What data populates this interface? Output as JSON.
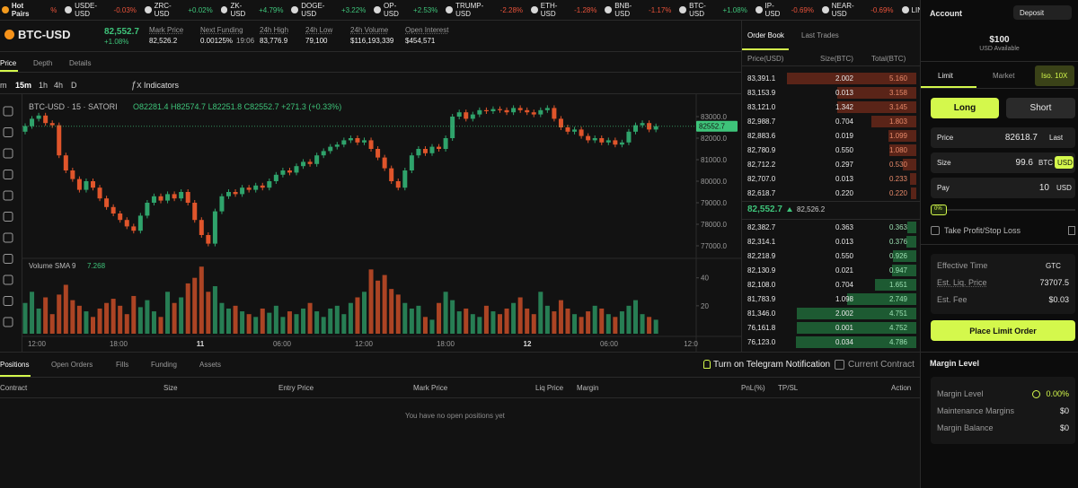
{
  "ticker": {
    "label": "Hot Pairs",
    "sort": "%",
    "items": [
      {
        "pair": "USDE-USD",
        "change": "-0.03%"
      },
      {
        "pair": "ZRC-USD",
        "change": "+0.02%"
      },
      {
        "pair": "ZK-USD",
        "change": "+4.79%"
      },
      {
        "pair": "DOGE-USD",
        "change": "+3.22%"
      },
      {
        "pair": "OP-USD",
        "change": "+2.53%"
      },
      {
        "pair": "TRUMP-USD",
        "change": "-2.28%"
      },
      {
        "pair": "ETH-USD",
        "change": "-1.28%"
      },
      {
        "pair": "BNB-USD",
        "change": "-1.17%"
      },
      {
        "pair": "BTC-USD",
        "change": "+1.08%"
      },
      {
        "pair": "IP-USD",
        "change": "-0.69%"
      },
      {
        "pair": "NEAR-USD",
        "change": "-0.69%"
      },
      {
        "pair": "LIN",
        "change": ""
      }
    ]
  },
  "market": {
    "symbol": "BTC-USD",
    "price": "82,552.7",
    "change": "+1.08%",
    "stats": [
      {
        "label": "Mark Price",
        "value": "82,526.2"
      },
      {
        "label": "Next Funding",
        "value": "0.00125%",
        "extra": "19:06"
      },
      {
        "label": "24h High",
        "value": "83,776.9"
      },
      {
        "label": "24h Low",
        "value": "79,100"
      },
      {
        "label": "24h Volume",
        "value": "$116,193,339"
      },
      {
        "label": "Open Interest",
        "value": "$454,571"
      }
    ]
  },
  "tabs": [
    "Price",
    "Depth",
    "Details"
  ],
  "toolbar": {
    "intervals": [
      "m",
      "15m",
      "1h",
      "4h",
      "D"
    ],
    "indicators": "Indicators"
  },
  "chart_data": {
    "type": "candlestick",
    "title": "BTC-USD · 15 · SATORI",
    "ohlc": "O82281.4 H82574.7 L82251.8 C82552.7 +271.3 (+0.33%)",
    "open": 82300,
    "close": [
      82560,
      82900,
      83050,
      82700,
      82600,
      81200,
      80500,
      80100,
      79600,
      80000,
      79700,
      79200,
      78800,
      78500,
      78200,
      77900,
      77700,
      78400,
      79000,
      79300,
      79100,
      79400,
      79200,
      79500,
      79000,
      78200,
      77500,
      77100,
      78600,
      79300,
      79500,
      79400,
      79700,
      79600,
      79800,
      79700,
      80000,
      80300,
      80500,
      80400,
      80700,
      80900,
      80800,
      81200,
      81400,
      81600,
      81700,
      81900,
      82000,
      81800,
      81900,
      81500,
      81100,
      80600,
      80000,
      79700,
      80500,
      81200,
      81500,
      81300,
      81600,
      81500,
      82000,
      83000,
      83200,
      82900,
      83100,
      83300,
      83250,
      83350,
      83300,
      83200,
      83400,
      83300,
      83200,
      83100,
      83300,
      83400,
      82900,
      82500,
      82300,
      82400,
      82100,
      81900,
      82000,
      81800,
      81900,
      81700,
      81800,
      82300,
      82600,
      82700,
      82400,
      82552.7
    ],
    "ylim": [
      76500,
      84000
    ],
    "yticks": [
      {
        "value": 83000,
        "label": "83000.0"
      },
      {
        "value": 82000,
        "label": "82000.0"
      },
      {
        "value": 81000,
        "label": "81000.0"
      },
      {
        "value": 80000,
        "label": "80000.0"
      },
      {
        "value": 79000,
        "label": "79000.0"
      },
      {
        "value": 78000,
        "label": "78000.0"
      },
      {
        "value": 77000,
        "label": "77000.0"
      }
    ],
    "last_price": 82552.7,
    "xticks": [
      "12:00",
      "18:00",
      "11",
      "06:00",
      "12:00",
      "18:00",
      "12",
      "06:00",
      "12:0"
    ],
    "colors": {
      "up": "#2fa36b",
      "down": "#e0552b"
    },
    "volume": {
      "name": "Volume SMA 9",
      "sma": "7.268",
      "values": [
        22,
        30,
        18,
        26,
        14,
        28,
        35,
        24,
        20,
        16,
        12,
        18,
        22,
        25,
        20,
        14,
        27,
        19,
        24,
        16,
        12,
        30,
        22,
        26,
        36,
        40,
        48,
        30,
        34,
        22,
        18,
        20,
        16,
        14,
        12,
        18,
        15,
        20,
        12,
        16,
        14,
        18,
        22,
        16,
        12,
        18,
        20,
        14,
        22,
        26,
        30,
        46,
        38,
        42,
        32,
        28,
        22,
        18,
        20,
        12,
        10,
        22,
        30,
        24,
        16,
        18,
        14,
        12,
        20,
        16,
        14,
        18,
        22,
        26,
        18,
        14,
        30,
        20,
        16,
        24,
        18,
        14,
        12,
        16,
        20,
        18,
        14,
        12,
        16,
        20,
        24,
        14,
        12,
        10
      ],
      "ylim": [
        0,
        52
      ],
      "yticks": [
        20,
        40
      ]
    }
  },
  "orderbook": {
    "tabs": [
      "Order Book",
      "Last Trades"
    ],
    "headers": [
      "Price(USD)",
      "Size(BTC)",
      "Total(BTC)"
    ],
    "asks": [
      [
        "83,391.1",
        "2.002",
        "5.160"
      ],
      [
        "83,153.9",
        "0.013",
        "3.158"
      ],
      [
        "83,121.0",
        "1.342",
        "3.145"
      ],
      [
        "82,988.7",
        "0.704",
        "1.803"
      ],
      [
        "82,883.6",
        "0.019",
        "1.099"
      ],
      [
        "82,780.9",
        "0.550",
        "1.080"
      ],
      [
        "82,712.2",
        "0.297",
        "0.530"
      ],
      [
        "82,707.0",
        "0.013",
        "0.233"
      ],
      [
        "82,618.7",
        "0.220",
        "0.220"
      ]
    ],
    "mid": {
      "price": "82,552.7",
      "mark": "82,526.2"
    },
    "bids": [
      [
        "82,382.7",
        "0.363",
        "0.363"
      ],
      [
        "82,314.1",
        "0.013",
        "0.376"
      ],
      [
        "82,218.9",
        "0.550",
        "0.926"
      ],
      [
        "82,130.9",
        "0.021",
        "0.947"
      ],
      [
        "82,108.0",
        "0.704",
        "1.651"
      ],
      [
        "81,783.9",
        "1.098",
        "2.749"
      ],
      [
        "81,346.0",
        "2.002",
        "4.751"
      ],
      [
        "76,161.8",
        "0.001",
        "4.752"
      ],
      [
        "76,123.0",
        "0.034",
        "4.786"
      ]
    ]
  },
  "positions": {
    "tabs": [
      "Positions",
      "Open Orders",
      "Fills",
      "Funding",
      "Assets"
    ],
    "telegram": "Turn on Telegram Notification",
    "current_contract": "Current Contract",
    "columns": [
      "Contract",
      "Size",
      "Entry Price",
      "Mark Price",
      "Liq Price",
      "Margin",
      "PnL(%)",
      "TP/SL",
      "Action"
    ],
    "empty": "You have no open positions yet"
  },
  "account": {
    "title": "Account",
    "deposit": "Deposit",
    "balance": "$100",
    "balance_label": "USD Available",
    "order_tabs": [
      "Limit",
      "Market",
      "Iso. 10X"
    ],
    "long": "Long",
    "short": "Short",
    "price": {
      "label": "Price",
      "value": "82618.7",
      "unit": "Last"
    },
    "size": {
      "label": "Size",
      "value": "99.6",
      "units": [
        "BTC",
        "USD"
      ]
    },
    "pay": {
      "label": "Pay",
      "value": "10",
      "unit": "USD"
    },
    "slider": "0%",
    "tpsl": "Take Profit/Stop Loss",
    "effective_time": {
      "label": "Effective Time",
      "value": "GTC"
    },
    "liq_price": {
      "label": "Est. Liq. Price",
      "value": "73707.5"
    },
    "fee": {
      "label": "Est. Fee",
      "value": "$0.03"
    },
    "submit": "Place Limit Order",
    "margin_title": "Margin Level",
    "margin": [
      {
        "label": "Margin Level",
        "value": "0.00%"
      },
      {
        "label": "Maintenance Margins",
        "value": "$0"
      },
      {
        "label": "Margin Balance",
        "value": "$0"
      }
    ]
  }
}
